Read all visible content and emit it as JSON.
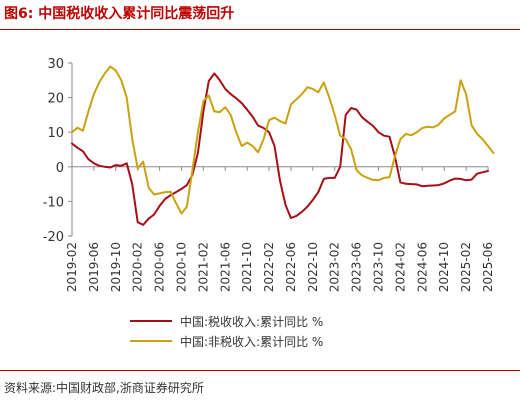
{
  "title": "图6:  中国税收收入累计同比震荡回升",
  "source": "资料来源:中国财政部,浙商证券研究所",
  "chart_data": {
    "type": "line",
    "title": "图6:  中国税收收入累计同比震荡回升",
    "xlabel": "",
    "ylabel": "",
    "ylim": [
      -20,
      30
    ],
    "yticks": [
      -20,
      -10,
      0,
      10,
      20,
      30
    ],
    "xlim": [
      "2019-02",
      "2025-06"
    ],
    "xticks": [
      "2019-02",
      "2019-06",
      "2019-10",
      "2020-02",
      "2020-06",
      "2020-10",
      "2021-02",
      "2021-06",
      "2021-10",
      "2022-02",
      "2022-06",
      "2022-10",
      "2023-02",
      "2023-06",
      "2023-10",
      "2024-02",
      "2024-06",
      "2024-10",
      "2025-02",
      "2025-06"
    ],
    "grid": false,
    "legend_position": "bottom",
    "series": [
      {
        "name": "中国:税收收入:累计同比 %",
        "color": "#a50f15",
        "points": [
          [
            "2019-02",
            6.7
          ],
          [
            "2019-03",
            5.5
          ],
          [
            "2019-04",
            4.5
          ],
          [
            "2019-05",
            2.2
          ],
          [
            "2019-06",
            1.0
          ],
          [
            "2019-07",
            0.3
          ],
          [
            "2019-08",
            0.0
          ],
          [
            "2019-09",
            -0.2
          ],
          [
            "2019-10",
            0.5
          ],
          [
            "2019-11",
            0.3
          ],
          [
            "2019-12",
            1.0
          ],
          [
            "2020-01",
            -5.0
          ],
          [
            "2020-02",
            -16.0
          ],
          [
            "2020-03",
            -16.8
          ],
          [
            "2020-04",
            -15.0
          ],
          [
            "2020-05",
            -13.8
          ],
          [
            "2020-06",
            -11.3
          ],
          [
            "2020-07",
            -9.3
          ],
          [
            "2020-08",
            -8.2
          ],
          [
            "2020-09",
            -7.3
          ],
          [
            "2020-10",
            -6.4
          ],
          [
            "2020-11",
            -5.3
          ],
          [
            "2020-12",
            -2.3
          ],
          [
            "2021-01",
            4.0
          ],
          [
            "2021-02",
            16.0
          ],
          [
            "2021-03",
            24.8
          ],
          [
            "2021-04",
            27.0
          ],
          [
            "2021-05",
            25.0
          ],
          [
            "2021-06",
            22.5
          ],
          [
            "2021-07",
            21.0
          ],
          [
            "2021-08",
            19.8
          ],
          [
            "2021-09",
            18.4
          ],
          [
            "2021-10",
            16.5
          ],
          [
            "2021-11",
            14.5
          ],
          [
            "2021-12",
            11.9
          ],
          [
            "2022-01",
            11.2
          ],
          [
            "2022-02",
            10.0
          ],
          [
            "2022-03",
            6.0
          ],
          [
            "2022-04",
            -4.0
          ],
          [
            "2022-05",
            -11.0
          ],
          [
            "2022-06",
            -14.8
          ],
          [
            "2022-07",
            -14.2
          ],
          [
            "2022-08",
            -13.0
          ],
          [
            "2022-09",
            -11.5
          ],
          [
            "2022-10",
            -9.6
          ],
          [
            "2022-11",
            -7.3
          ],
          [
            "2022-12",
            -3.5
          ],
          [
            "2023-01",
            -3.2
          ],
          [
            "2023-02",
            -3.2
          ],
          [
            "2023-03",
            0.0
          ],
          [
            "2023-04",
            15.0
          ],
          [
            "2023-05",
            17.0
          ],
          [
            "2023-06",
            16.5
          ],
          [
            "2023-07",
            14.3
          ],
          [
            "2023-08",
            13.0
          ],
          [
            "2023-09",
            11.8
          ],
          [
            "2023-10",
            10.0
          ],
          [
            "2023-11",
            9.0
          ],
          [
            "2023-12",
            8.7
          ],
          [
            "2024-01",
            3.0
          ],
          [
            "2024-02",
            -4.5
          ],
          [
            "2024-03",
            -4.9
          ],
          [
            "2024-04",
            -5.0
          ],
          [
            "2024-05",
            -5.1
          ],
          [
            "2024-06",
            -5.6
          ],
          [
            "2024-07",
            -5.5
          ],
          [
            "2024-08",
            -5.4
          ],
          [
            "2024-09",
            -5.3
          ],
          [
            "2024-10",
            -4.8
          ],
          [
            "2024-11",
            -4.0
          ],
          [
            "2024-12",
            -3.4
          ],
          [
            "2025-01",
            -3.5
          ],
          [
            "2025-02",
            -3.9
          ],
          [
            "2025-03",
            -3.7
          ],
          [
            "2025-04",
            -2.0
          ],
          [
            "2025-05",
            -1.6
          ],
          [
            "2025-06",
            -1.2
          ]
        ]
      },
      {
        "name": "中国:非税收入:累计同比 %",
        "color": "#c9a212",
        "points": [
          [
            "2019-02",
            10.0
          ],
          [
            "2019-03",
            11.3
          ],
          [
            "2019-04",
            10.4
          ],
          [
            "2019-05",
            16.0
          ],
          [
            "2019-06",
            21.0
          ],
          [
            "2019-07",
            24.5
          ],
          [
            "2019-08",
            27.0
          ],
          [
            "2019-09",
            29.0
          ],
          [
            "2019-10",
            27.8
          ],
          [
            "2019-11",
            25.0
          ],
          [
            "2019-12",
            20.0
          ],
          [
            "2020-01",
            8.0
          ],
          [
            "2020-02",
            -0.5
          ],
          [
            "2020-03",
            1.5
          ],
          [
            "2020-04",
            -6.0
          ],
          [
            "2020-05",
            -8.0
          ],
          [
            "2020-06",
            -7.7
          ],
          [
            "2020-07",
            -7.3
          ],
          [
            "2020-08",
            -7.2
          ],
          [
            "2020-09",
            -10.5
          ],
          [
            "2020-10",
            -13.5
          ],
          [
            "2020-11",
            -11.5
          ],
          [
            "2020-12",
            -1.0
          ],
          [
            "2021-01",
            10.0
          ],
          [
            "2021-02",
            19.0
          ],
          [
            "2021-03",
            20.6
          ],
          [
            "2021-04",
            16.0
          ],
          [
            "2021-05",
            15.8
          ],
          [
            "2021-06",
            17.2
          ],
          [
            "2021-07",
            15.0
          ],
          [
            "2021-08",
            10.0
          ],
          [
            "2021-09",
            6.0
          ],
          [
            "2021-10",
            7.0
          ],
          [
            "2021-11",
            6.0
          ],
          [
            "2021-12",
            4.2
          ],
          [
            "2022-01",
            8.0
          ],
          [
            "2022-02",
            13.5
          ],
          [
            "2022-03",
            14.2
          ],
          [
            "2022-04",
            13.2
          ],
          [
            "2022-05",
            12.5
          ],
          [
            "2022-06",
            18.0
          ],
          [
            "2022-07",
            19.5
          ],
          [
            "2022-08",
            21.0
          ],
          [
            "2022-09",
            23.0
          ],
          [
            "2022-10",
            22.5
          ],
          [
            "2022-11",
            21.5
          ],
          [
            "2022-12",
            24.4
          ],
          [
            "2023-01",
            20.0
          ],
          [
            "2023-02",
            15.0
          ],
          [
            "2023-03",
            9.0
          ],
          [
            "2023-04",
            8.0
          ],
          [
            "2023-05",
            5.0
          ],
          [
            "2023-06",
            -1.0
          ],
          [
            "2023-07",
            -2.5
          ],
          [
            "2023-08",
            -3.2
          ],
          [
            "2023-09",
            -3.8
          ],
          [
            "2023-10",
            -3.9
          ],
          [
            "2023-11",
            -3.2
          ],
          [
            "2023-12",
            -3.0
          ],
          [
            "2024-01",
            3.0
          ],
          [
            "2024-02",
            8.0
          ],
          [
            "2024-03",
            9.5
          ],
          [
            "2024-04",
            9.1
          ],
          [
            "2024-05",
            10.0
          ],
          [
            "2024-06",
            11.2
          ],
          [
            "2024-07",
            11.6
          ],
          [
            "2024-08",
            11.4
          ],
          [
            "2024-09",
            12.2
          ],
          [
            "2024-10",
            14.0
          ],
          [
            "2024-11",
            15.0
          ],
          [
            "2024-12",
            16.0
          ],
          [
            "2025-01",
            25.0
          ],
          [
            "2025-02",
            21.0
          ],
          [
            "2025-03",
            12.0
          ],
          [
            "2025-04",
            9.5
          ],
          [
            "2025-05",
            8.0
          ],
          [
            "2025-06",
            6.0
          ],
          [
            "2025-07",
            4.0
          ]
        ]
      }
    ]
  }
}
